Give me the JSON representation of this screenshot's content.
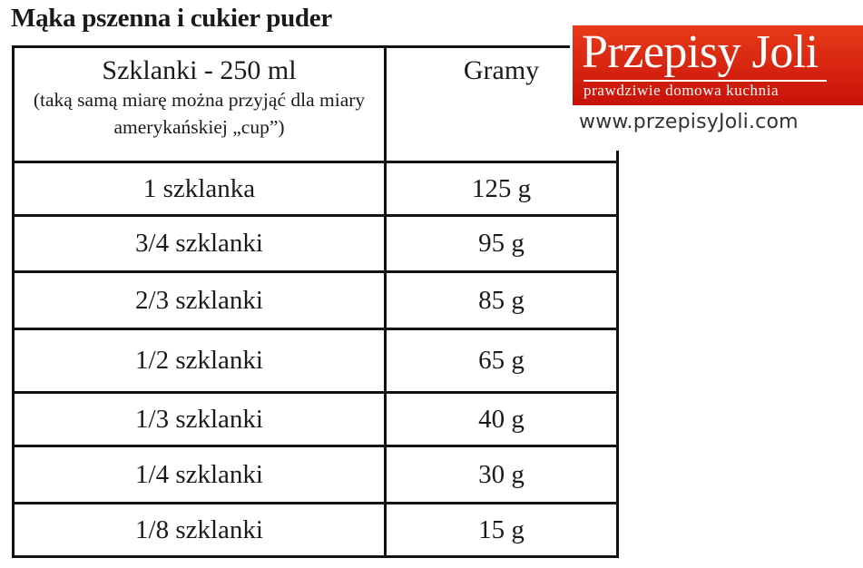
{
  "title": "Mąka pszenna i cukier puder",
  "table": {
    "header": {
      "col1_main": "Szklanki - 250 ml",
      "col1_note": "(taką samą miarę można przyjąć dla miary amerykańskiej „cup”)",
      "col2": "Gramy"
    },
    "rows": [
      {
        "measure": "1 szklanka",
        "grams": "125 g"
      },
      {
        "measure": "3/4 szklanki",
        "grams": "95 g"
      },
      {
        "measure": "2/3 szklanki",
        "grams": "85 g"
      },
      {
        "measure": "1/2 szklanki",
        "grams": "65 g"
      },
      {
        "measure": "1/3 szklanki",
        "grams": "40 g"
      },
      {
        "measure": "1/4 szklanki",
        "grams": "30 g"
      },
      {
        "measure": "1/8 szklanki",
        "grams": "15 g"
      }
    ]
  },
  "logo": {
    "brand": "Przepisy Joli",
    "tagline": "prawdziwie domowa kuchnia",
    "url": "www.przepisyJoli.com",
    "color": "#d9230f"
  }
}
